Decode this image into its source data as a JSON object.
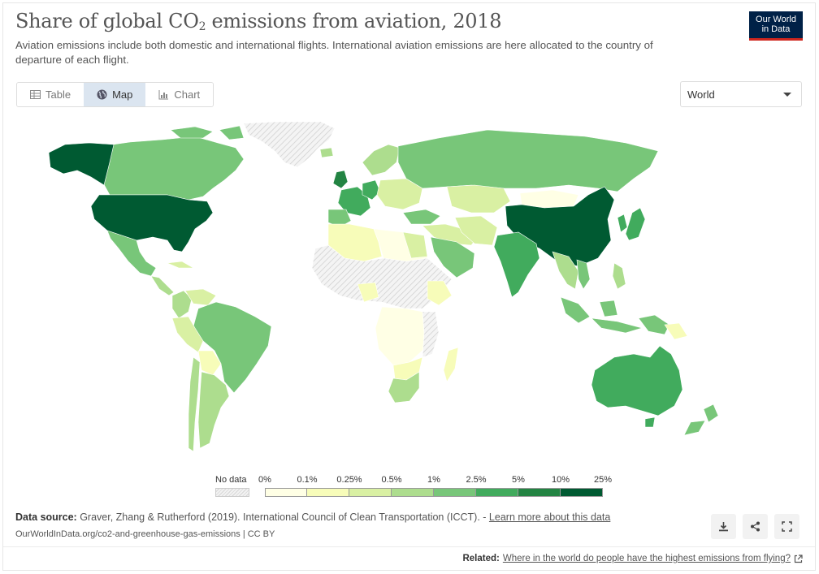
{
  "header": {
    "title": "Share of global CO",
    "title_sub": "2",
    "title_suffix": " emissions from aviation, 2018",
    "subtitle": "Aviation emissions include both domestic and international flights. International aviation emissions are here allocated to the country of departure of each flight.",
    "logo_line1": "Our World",
    "logo_line2": "in Data"
  },
  "tabs": [
    {
      "label": "Table",
      "icon": "table-icon"
    },
    {
      "label": "Map",
      "icon": "globe-icon"
    },
    {
      "label": "Chart",
      "icon": "chart-icon"
    }
  ],
  "region_select": {
    "value": "World"
  },
  "legend": {
    "nodata_label": "No data",
    "ticks": [
      "0%",
      "0.1%",
      "0.25%",
      "0.5%",
      "1%",
      "2.5%",
      "5%",
      "10%",
      "25%"
    ],
    "colors": [
      "#ffffe5",
      "#f7fcb9",
      "#d9f0a3",
      "#addd8e",
      "#78c679",
      "#41ab5d",
      "#238443",
      "#005a32"
    ],
    "nodata_color": "#eeeeee"
  },
  "chart_data": {
    "type": "choropleth",
    "title": "Share of global CO₂ emissions from aviation, 2018",
    "year": 2018,
    "bins": [
      0,
      0.1,
      0.25,
      0.5,
      1,
      2.5,
      5,
      10,
      25
    ],
    "unit": "%",
    "regions": [
      {
        "name": "United States",
        "bin": 7
      },
      {
        "name": "Alaska (United States)",
        "bin": 7
      },
      {
        "name": "China",
        "bin": 7
      },
      {
        "name": "United Kingdom",
        "bin": 6
      },
      {
        "name": "Germany",
        "bin": 5
      },
      {
        "name": "France",
        "bin": 5
      },
      {
        "name": "Japan",
        "bin": 5
      },
      {
        "name": "India",
        "bin": 5
      },
      {
        "name": "Australia",
        "bin": 5
      },
      {
        "name": "Canada",
        "bin": 4
      },
      {
        "name": "Russia",
        "bin": 4
      },
      {
        "name": "Brazil",
        "bin": 4
      },
      {
        "name": "Mexico",
        "bin": 4
      },
      {
        "name": "Saudi Arabia",
        "bin": 4
      },
      {
        "name": "Indonesia",
        "bin": 4
      },
      {
        "name": "South Africa",
        "bin": 3
      },
      {
        "name": "Argentina",
        "bin": 3
      },
      {
        "name": "Kazakhstan",
        "bin": 2
      },
      {
        "name": "Mongolia",
        "bin": 0
      },
      {
        "name": "Algeria",
        "bin": 1
      },
      {
        "name": "Nigeria",
        "bin": 1
      },
      {
        "name": "New Zealand",
        "bin": 3
      },
      {
        "name": "Greenland",
        "bin": -1
      }
    ]
  },
  "footer": {
    "source_label": "Data source:",
    "source_text": " Graver, Zhang & Rutherford (2019). International Council of Clean Transportation (ICCT). - ",
    "source_link": "Learn more about this data",
    "url": "OurWorldInData.org/co2-and-greenhouse-gas-emissions | CC BY",
    "related_label": "Related:",
    "related_link": "Where in the world do people have the highest emissions from flying?"
  }
}
